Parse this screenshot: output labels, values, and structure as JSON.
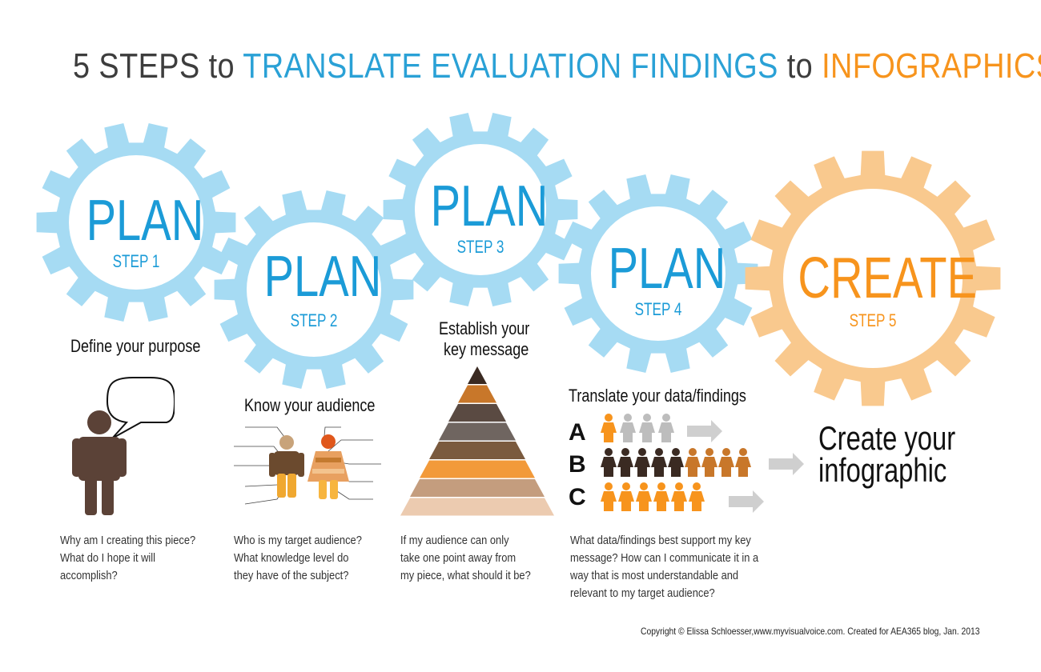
{
  "title": {
    "part1": "5 STEPS",
    "part2": "to",
    "part3": "TRANSLATE EVALUATION FINDINGS",
    "part4": "to",
    "part5": "INFOGRAPHICS"
  },
  "colors": {
    "blue": "#2aa1d6",
    "gear_blue": "#a6dbf3",
    "orange": "#f7941d",
    "gear_orange": "#f9c98e",
    "dark": "#3d3d3d",
    "brown": "#5b4237"
  },
  "steps": [
    {
      "word": "PLAN",
      "step": "STEP 1",
      "heading": "Define your purpose",
      "desc": [
        "Why am I creating this piece?",
        "What do I hope it will",
        "accomplish?"
      ]
    },
    {
      "word": "PLAN",
      "step": "STEP 2",
      "heading": "Know your audience",
      "desc": [
        "Who is my target audience?",
        "What knowledge level do",
        "they have of the subject?"
      ]
    },
    {
      "word": "PLAN",
      "step": "STEP 3",
      "heading": [
        "Establish your",
        "key message"
      ],
      "desc": [
        "If my audience can only",
        "take one point away from",
        "my piece, what should it be?"
      ]
    },
    {
      "word": "PLAN",
      "step": "STEP 4",
      "heading": "Translate your data/findings",
      "desc": [
        "What data/findings best support my key",
        "message? How can I communicate it in a",
        "way that is most understandable and",
        "relevant to my target audience?"
      ]
    },
    {
      "word": "CREATE",
      "step": "STEP 5",
      "heading": [
        "Create your",
        "infographic"
      ]
    }
  ],
  "rows": [
    "A",
    "B",
    "C"
  ],
  "icons": {
    "speech": "speech-bubble-icon",
    "person": "person-icon",
    "pyramid": "pyramid-icon",
    "arrow": "arrow-right-icon"
  },
  "copyright": "Copyright © Elissa Schloesser,www.myvisualvoice.com. Created for AEA365 blog, Jan. 2013"
}
